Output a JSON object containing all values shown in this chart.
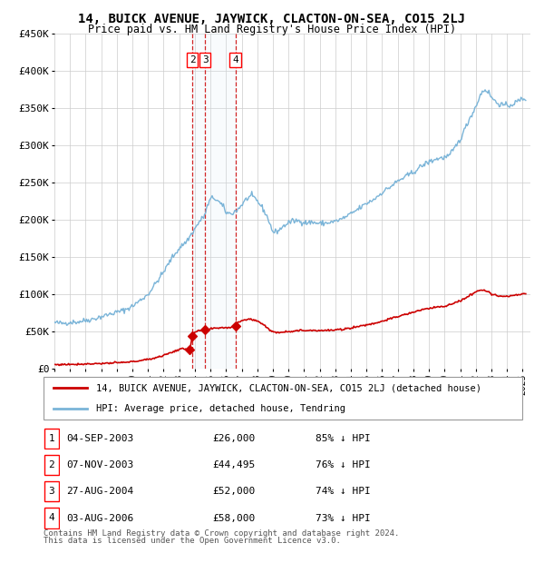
{
  "title": "14, BUICK AVENUE, JAYWICK, CLACTON-ON-SEA, CO15 2LJ",
  "subtitle": "Price paid vs. HM Land Registry's House Price Index (HPI)",
  "legend_line1": "14, BUICK AVENUE, JAYWICK, CLACTON-ON-SEA, CO15 2LJ (detached house)",
  "legend_line2": "HPI: Average price, detached house, Tendring",
  "footer1": "Contains HM Land Registry data © Crown copyright and database right 2024.",
  "footer2": "This data is licensed under the Open Government Licence v3.0.",
  "transactions": [
    {
      "id": 1,
      "date": "04-SEP-2003",
      "price": 26000,
      "pct": "85% ↓ HPI",
      "decimal_date": 2003.67
    },
    {
      "id": 2,
      "date": "07-NOV-2003",
      "price": 44495,
      "pct": "76% ↓ HPI",
      "decimal_date": 2003.85
    },
    {
      "id": 3,
      "date": "27-AUG-2004",
      "price": 52000,
      "pct": "74% ↓ HPI",
      "decimal_date": 2004.65
    },
    {
      "id": 4,
      "date": "03-AUG-2006",
      "price": 58000,
      "pct": "73% ↓ HPI",
      "decimal_date": 2006.59
    }
  ],
  "prices_formatted": [
    "£26,000",
    "£44,495",
    "£52,000",
    "£58,000"
  ],
  "hpi_color": "#7ab4d8",
  "sale_color": "#cc0000",
  "vline_color": "#cc0000",
  "shade_color": "#daeaf5",
  "background_color": "#ffffff",
  "grid_color": "#cccccc",
  "ylim": [
    0,
    450000
  ],
  "xlim_start": 1995.0,
  "xlim_end": 2025.5,
  "hpi_anchors": [
    [
      1995.0,
      62000
    ],
    [
      1995.5,
      61000
    ],
    [
      1996.0,
      62500
    ],
    [
      1996.5,
      63000
    ],
    [
      1997.0,
      65000
    ],
    [
      1997.5,
      67000
    ],
    [
      1998.0,
      70000
    ],
    [
      1998.5,
      73000
    ],
    [
      1999.0,
      76000
    ],
    [
      1999.5,
      79000
    ],
    [
      2000.0,
      84000
    ],
    [
      2000.5,
      92000
    ],
    [
      2001.0,
      100000
    ],
    [
      2001.5,
      115000
    ],
    [
      2002.0,
      130000
    ],
    [
      2002.5,
      148000
    ],
    [
      2003.0,
      162000
    ],
    [
      2003.5,
      172000
    ],
    [
      2004.0,
      188000
    ],
    [
      2004.3,
      198000
    ],
    [
      2004.6,
      205000
    ],
    [
      2004.8,
      218000
    ],
    [
      2005.0,
      228000
    ],
    [
      2005.2,
      230000
    ],
    [
      2005.5,
      225000
    ],
    [
      2005.8,
      218000
    ],
    [
      2006.0,
      210000
    ],
    [
      2006.3,
      208000
    ],
    [
      2006.7,
      213000
    ],
    [
      2007.0,
      220000
    ],
    [
      2007.3,
      228000
    ],
    [
      2007.6,
      232000
    ],
    [
      2007.9,
      228000
    ],
    [
      2008.2,
      220000
    ],
    [
      2008.5,
      210000
    ],
    [
      2008.8,
      196000
    ],
    [
      2009.0,
      183000
    ],
    [
      2009.3,
      185000
    ],
    [
      2009.6,
      190000
    ],
    [
      2009.9,
      195000
    ],
    [
      2010.2,
      198000
    ],
    [
      2010.5,
      199000
    ],
    [
      2010.8,
      198000
    ],
    [
      2011.2,
      196000
    ],
    [
      2011.5,
      197000
    ],
    [
      2012.0,
      195000
    ],
    [
      2012.5,
      196000
    ],
    [
      2013.0,
      198000
    ],
    [
      2013.5,
      202000
    ],
    [
      2014.0,
      208000
    ],
    [
      2014.5,
      215000
    ],
    [
      2015.0,
      222000
    ],
    [
      2015.5,
      228000
    ],
    [
      2016.0,
      237000
    ],
    [
      2016.5,
      244000
    ],
    [
      2017.0,
      252000
    ],
    [
      2017.5,
      258000
    ],
    [
      2018.0,
      264000
    ],
    [
      2018.5,
      272000
    ],
    [
      2019.0,
      278000
    ],
    [
      2019.5,
      282000
    ],
    [
      2020.0,
      284000
    ],
    [
      2020.3,
      286000
    ],
    [
      2020.6,
      295000
    ],
    [
      2021.0,
      308000
    ],
    [
      2021.3,
      322000
    ],
    [
      2021.6,
      336000
    ],
    [
      2022.0,
      352000
    ],
    [
      2022.2,
      363000
    ],
    [
      2022.4,
      372000
    ],
    [
      2022.6,
      375000
    ],
    [
      2022.8,
      372000
    ],
    [
      2023.0,
      365000
    ],
    [
      2023.3,
      358000
    ],
    [
      2023.6,
      355000
    ],
    [
      2024.0,
      353000
    ],
    [
      2024.3,
      355000
    ],
    [
      2024.6,
      358000
    ],
    [
      2024.9,
      362000
    ],
    [
      2025.1,
      363000
    ]
  ],
  "sale_anchors": [
    [
      1995.0,
      5500
    ],
    [
      1995.5,
      5700
    ],
    [
      1996.0,
      6000
    ],
    [
      1996.5,
      6200
    ],
    [
      1997.0,
      6500
    ],
    [
      1997.5,
      6800
    ],
    [
      1998.0,
      7200
    ],
    [
      1998.5,
      7500
    ],
    [
      1999.0,
      8000
    ],
    [
      1999.5,
      8500
    ],
    [
      2000.0,
      9500
    ],
    [
      2000.5,
      11000
    ],
    [
      2001.0,
      12500
    ],
    [
      2001.5,
      15000
    ],
    [
      2002.0,
      18000
    ],
    [
      2002.5,
      22000
    ],
    [
      2003.0,
      26000
    ],
    [
      2003.4,
      27000
    ],
    [
      2003.67,
      26000
    ],
    [
      2003.85,
      44495
    ],
    [
      2004.0,
      49000
    ],
    [
      2004.3,
      51000
    ],
    [
      2004.65,
      52000
    ],
    [
      2004.9,
      53000
    ],
    [
      2005.2,
      54000
    ],
    [
      2005.5,
      55000
    ],
    [
      2005.8,
      55500
    ],
    [
      2006.0,
      55000
    ],
    [
      2006.3,
      55500
    ],
    [
      2006.59,
      58000
    ],
    [
      2006.8,
      63000
    ],
    [
      2007.0,
      65000
    ],
    [
      2007.3,
      66000
    ],
    [
      2007.6,
      66500
    ],
    [
      2007.9,
      65000
    ],
    [
      2008.2,
      62000
    ],
    [
      2008.5,
      58000
    ],
    [
      2008.8,
      52000
    ],
    [
      2009.0,
      49000
    ],
    [
      2009.3,
      49000
    ],
    [
      2009.6,
      49500
    ],
    [
      2009.9,
      50000
    ],
    [
      2010.2,
      50500
    ],
    [
      2010.5,
      51000
    ],
    [
      2011.0,
      51500
    ],
    [
      2011.5,
      51800
    ],
    [
      2012.0,
      51500
    ],
    [
      2012.5,
      51500
    ],
    [
      2013.0,
      52000
    ],
    [
      2013.5,
      53000
    ],
    [
      2014.0,
      55000
    ],
    [
      2014.5,
      57000
    ],
    [
      2015.0,
      59000
    ],
    [
      2015.5,
      61000
    ],
    [
      2016.0,
      64000
    ],
    [
      2016.5,
      67000
    ],
    [
      2017.0,
      70000
    ],
    [
      2017.5,
      73000
    ],
    [
      2018.0,
      76000
    ],
    [
      2018.5,
      79000
    ],
    [
      2019.0,
      81000
    ],
    [
      2019.5,
      83000
    ],
    [
      2020.0,
      84000
    ],
    [
      2020.5,
      87000
    ],
    [
      2021.0,
      91000
    ],
    [
      2021.5,
      97000
    ],
    [
      2022.0,
      103000
    ],
    [
      2022.3,
      107000
    ],
    [
      2022.6,
      105000
    ],
    [
      2022.8,
      103000
    ],
    [
      2023.0,
      100000
    ],
    [
      2023.3,
      99000
    ],
    [
      2023.6,
      97500
    ],
    [
      2024.0,
      97000
    ],
    [
      2024.3,
      98000
    ],
    [
      2024.6,
      99000
    ],
    [
      2024.9,
      100000
    ],
    [
      2025.1,
      100500
    ]
  ]
}
